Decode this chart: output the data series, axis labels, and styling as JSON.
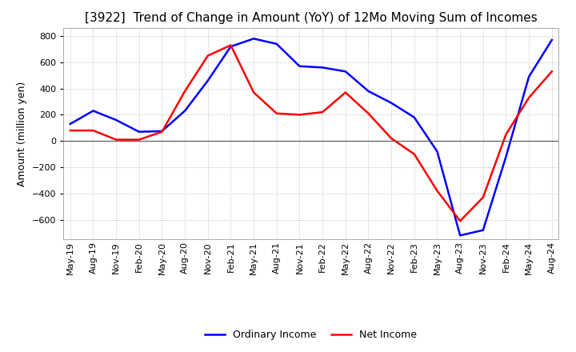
{
  "title": "[3922]  Trend of Change in Amount (YoY) of 12Mo Moving Sum of Incomes",
  "ylabel": "Amount (million yen)",
  "ylim": [
    -750,
    860
  ],
  "yticks": [
    -600,
    -400,
    -200,
    0,
    200,
    400,
    600,
    800
  ],
  "background_color": "#ffffff",
  "grid_color": "#bbbbbb",
  "line_blue": "#0000ff",
  "line_red": "#ff0000",
  "legend_labels": [
    "Ordinary Income",
    "Net Income"
  ],
  "x_labels": [
    "May-19",
    "Aug-19",
    "Nov-19",
    "Feb-20",
    "May-20",
    "Aug-20",
    "Nov-20",
    "Feb-21",
    "May-21",
    "Aug-21",
    "Nov-21",
    "Feb-22",
    "May-22",
    "Aug-22",
    "Nov-22",
    "Feb-23",
    "May-23",
    "Aug-23",
    "Nov-23",
    "Feb-24",
    "May-24",
    "Aug-24"
  ],
  "ordinary_income": [
    130,
    230,
    160,
    70,
    75,
    230,
    460,
    720,
    780,
    740,
    570,
    560,
    530,
    380,
    290,
    180,
    -80,
    -720,
    -680,
    -120,
    490,
    770
  ],
  "net_income": [
    80,
    80,
    10,
    10,
    70,
    380,
    650,
    730,
    370,
    210,
    200,
    220,
    370,
    210,
    20,
    -100,
    -380,
    -610,
    -430,
    50,
    330,
    530
  ],
  "title_fontsize": 11,
  "ylabel_fontsize": 9,
  "tick_fontsize": 8
}
